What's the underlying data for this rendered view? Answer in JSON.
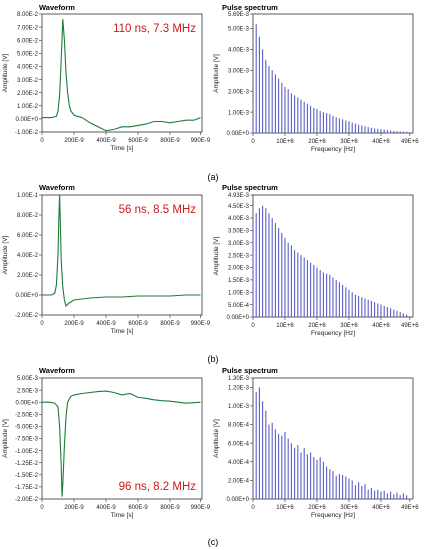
{
  "panels": [
    {
      "caption": "(a)",
      "waveform": {
        "type": "line",
        "title": "Waveform",
        "annotation": "110 ns, 7.3 MHz",
        "xlabel": "Time [s]",
        "ylabel": "Amplitude [V]",
        "xlim": [
          0,
          1e-06
        ],
        "ylim": [
          -0.01,
          0.08
        ],
        "x_ticks": [
          0,
          2e-07,
          4e-07,
          6e-07,
          8e-07,
          9.9e-07
        ],
        "x_tick_labels": [
          "0",
          "200E-9",
          "400E-9",
          "600E-9",
          "800E-9",
          "990E-9"
        ],
        "y_ticks": [
          -0.01,
          0,
          0.01,
          0.02,
          0.03,
          0.04,
          0.05,
          0.06,
          0.07,
          0.08
        ],
        "y_tick_labels": [
          "-1.00E-2",
          "0.00E+0",
          "1.00E-2",
          "2.00E-2",
          "3.00E-2",
          "4.00E-2",
          "5.00E-2",
          "6.00E-2",
          "7.00E-2",
          "8.00E-2"
        ],
        "x": [
          0,
          6e-08,
          9e-08,
          1e-07,
          1.1e-07,
          1.2e-07,
          1.3e-07,
          1.4e-07,
          1.5e-07,
          1.6e-07,
          1.7e-07,
          1.8e-07,
          2e-07,
          2.2e-07,
          2.5e-07,
          3e-07,
          3.5e-07,
          4e-07,
          4.5e-07,
          5e-07,
          5.5e-07,
          6e-07,
          6.5e-07,
          7e-07,
          7.5e-07,
          8e-07,
          8.5e-07,
          9e-07,
          9.5e-07,
          9.9e-07
        ],
        "y": [
          0.001,
          0.001,
          0.002,
          0.006,
          0.018,
          0.045,
          0.076,
          0.06,
          0.035,
          0.02,
          0.011,
          0.006,
          0.003,
          0.002,
          0.001,
          -0.003,
          -0.006,
          -0.009,
          -0.008,
          -0.006,
          -0.006,
          -0.005,
          -0.004,
          -0.002,
          -0.002,
          -0.003,
          -0.002,
          -0.001,
          -0.001,
          0.001
        ]
      },
      "spectrum": {
        "type": "bar",
        "title": "Pulse spectrum",
        "xlabel": "Frequency [Hz]",
        "ylabel": "Amplitude [V]",
        "xlim": [
          0,
          50000000.0
        ],
        "ylim": [
          0,
          0.00569
        ],
        "x_ticks": [
          0,
          10000000.0,
          20000000.0,
          30000000.0,
          40000000.0,
          49000000.0
        ],
        "x_tick_labels": [
          "0",
          "10E+6",
          "20E+6",
          "30E+6",
          "40E+6",
          "49E+6"
        ],
        "y_ticks": [
          0,
          0.001,
          0.002,
          0.003,
          0.004,
          0.005,
          0.00569
        ],
        "y_tick_labels": [
          "0.00E+0",
          "1.00E-3",
          "2.00E-3",
          "3.00E-3",
          "4.00E-3",
          "5.00E-3",
          "5.69E-3"
        ],
        "freq_step": 1000000.0,
        "values": [
          0.00055,
          0.0052,
          0.0046,
          0.004,
          0.0035,
          0.0032,
          0.003,
          0.0028,
          0.0026,
          0.0024,
          0.0022,
          0.0021,
          0.0019,
          0.0018,
          0.0017,
          0.0016,
          0.0015,
          0.0014,
          0.0013,
          0.0012,
          0.00115,
          0.00105,
          0.001,
          0.00095,
          0.0009,
          0.00082,
          0.00076,
          0.0007,
          0.00065,
          0.0006,
          0.00056,
          0.0005,
          0.00045,
          0.0004,
          0.00036,
          0.00032,
          0.00028,
          0.00025,
          0.00022,
          0.0002,
          0.00018,
          0.00016,
          0.00014,
          0.00012,
          0.0001,
          9e-05,
          8e-05,
          7e-05,
          6e-05
        ]
      }
    },
    {
      "caption": "(b)",
      "waveform": {
        "type": "line",
        "title": "Waveform",
        "annotation": "56 ns, 8.5 MHz",
        "xlabel": "Time [s]",
        "ylabel": "Amplitude [V]",
        "xlim": [
          0,
          1e-06
        ],
        "ylim": [
          -0.02,
          0.1
        ],
        "x_ticks": [
          0,
          2e-07,
          4e-07,
          6e-07,
          8e-07,
          9.9e-07
        ],
        "x_tick_labels": [
          "0",
          "200E-9",
          "400E-9",
          "600E-9",
          "800E-9",
          "990E-9"
        ],
        "y_ticks": [
          -0.02,
          0,
          0.02,
          0.04,
          0.06,
          0.08,
          0.1
        ],
        "y_tick_labels": [
          "-2.00E-2",
          "0.00E+0",
          "2.00E-2",
          "4.00E-2",
          "6.00E-2",
          "8.00E-2",
          "1.00E-1"
        ],
        "x": [
          0,
          6e-08,
          8e-08,
          9e-08,
          1e-07,
          1.05e-07,
          1.1e-07,
          1.15e-07,
          1.2e-07,
          1.3e-07,
          1.4e-07,
          1.5e-07,
          1.7e-07,
          2e-07,
          2.5e-07,
          3e-07,
          4e-07,
          5e-07,
          6e-07,
          7e-07,
          8e-07,
          9e-07,
          9.9e-07
        ],
        "y": [
          0,
          0,
          0.002,
          0.01,
          0.04,
          0.075,
          0.1,
          0.07,
          0.035,
          0.008,
          -0.005,
          -0.011,
          -0.008,
          -0.005,
          -0.004,
          -0.003,
          -0.002,
          -0.002,
          -0.001,
          -0.001,
          -0.001,
          0,
          0
        ]
      },
      "spectrum": {
        "type": "bar",
        "title": "Pulse spectrum",
        "xlabel": "Frequency [Hz]",
        "ylabel": "Amplitude [V]",
        "xlim": [
          0,
          50000000.0
        ],
        "ylim": [
          0,
          0.00493
        ],
        "x_ticks": [
          0,
          10000000.0,
          20000000.0,
          30000000.0,
          40000000.0,
          49000000.0
        ],
        "x_tick_labels": [
          "0",
          "10E+6",
          "20E+6",
          "30E+6",
          "40E+6",
          "49E+6"
        ],
        "y_ticks": [
          0,
          0.0005,
          0.001,
          0.0015,
          0.002,
          0.0025,
          0.003,
          0.0035,
          0.004,
          0.0045,
          0.00493
        ],
        "y_tick_labels": [
          "0.00E+0",
          "5.00E-4",
          "1.00E-3",
          "1.50E-3",
          "2.00E-3",
          "2.50E-3",
          "3.00E-3",
          "3.50E-3",
          "4.00E-3",
          "4.50E-3",
          "4.93E-3"
        ],
        "freq_step": 1000000.0,
        "values": [
          0.0038,
          0.0042,
          0.0044,
          0.0045,
          0.0044,
          0.0042,
          0.004,
          0.0038,
          0.0036,
          0.0034,
          0.0032,
          0.003,
          0.0029,
          0.0027,
          0.0026,
          0.0025,
          0.0024,
          0.0023,
          0.0022,
          0.0021,
          0.002,
          0.0019,
          0.0018,
          0.00175,
          0.0017,
          0.0016,
          0.0015,
          0.0014,
          0.0013,
          0.0012,
          0.0011,
          0.001,
          0.0009,
          0.00085,
          0.0008,
          0.00075,
          0.0007,
          0.00065,
          0.0006,
          0.00055,
          0.0005,
          0.00045,
          0.0004,
          0.00035,
          0.0003,
          0.00025,
          0.0002,
          0.00015,
          0.0001
        ]
      }
    },
    {
      "caption": "(c)",
      "waveform": {
        "type": "line",
        "title": "Waveform",
        "annotation": "96 ns, 8.2 MHz",
        "xlabel": "Time [s]",
        "ylabel": "Amplitude [V]",
        "xlim": [
          0,
          1e-06
        ],
        "ylim": [
          -0.02,
          0.005
        ],
        "x_ticks": [
          0,
          2e-07,
          4e-07,
          6e-07,
          8e-07,
          9.9e-07
        ],
        "x_tick_labels": [
          "0",
          "200E-9",
          "400E-9",
          "600E-9",
          "800E-9",
          "990E-9"
        ],
        "y_ticks": [
          -0.02,
          -0.0175,
          -0.015,
          -0.0125,
          -0.01,
          -0.0075,
          -0.005,
          -0.0025,
          0,
          0.0025,
          0.005
        ],
        "y_tick_labels": [
          "-2.00E-2",
          "-1.75E-2",
          "-1.50E-2",
          "-1.25E-2",
          "-1.00E-2",
          "-7.50E-3",
          "-5.00E-3",
          "-2.50E-3",
          "0.00E+0",
          "2.50E-3",
          "5.00E-3"
        ],
        "x": [
          0,
          5e-08,
          8e-08,
          1e-07,
          1.1e-07,
          1.2e-07,
          1.25e-07,
          1.3e-07,
          1.4e-07,
          1.5e-07,
          1.6e-07,
          1.8e-07,
          2e-07,
          2.5e-07,
          3e-07,
          3.5e-07,
          4e-07,
          4.5e-07,
          5e-07,
          5.5e-07,
          6e-07,
          6.5e-07,
          7e-07,
          7.5e-07,
          8e-07,
          8.5e-07,
          9e-07,
          9.5e-07,
          9.9e-07
        ],
        "y": [
          0,
          0,
          -0.0002,
          -0.001,
          -0.005,
          -0.013,
          -0.0195,
          -0.017,
          -0.009,
          -0.003,
          0,
          0.0012,
          0.0015,
          0.0018,
          0.002,
          0.0022,
          0.0023,
          0.002,
          0.0015,
          0.0018,
          0.001,
          0.0008,
          0.0005,
          0.0003,
          0.0002,
          0,
          -0.0002,
          -0.0001,
          0
        ]
      },
      "spectrum": {
        "type": "bar",
        "title": "Pulse spectrum",
        "xlabel": "Frequency [Hz]",
        "ylabel": "Amplitude [V]",
        "xlim": [
          0,
          50000000.0
        ],
        "ylim": [
          0,
          0.0013
        ],
        "x_ticks": [
          0,
          10000000.0,
          20000000.0,
          30000000.0,
          40000000.0,
          49000000.0
        ],
        "x_tick_labels": [
          "0",
          "10E+6",
          "20E+6",
          "30E+6",
          "40E+6",
          "49E+6"
        ],
        "y_ticks": [
          0,
          0.0002,
          0.0004,
          0.0006,
          0.0008,
          0.001,
          0.0012,
          0.0013
        ],
        "y_tick_labels": [
          "0.00E+0",
          "2.00E-4",
          "4.00E-4",
          "6.00E-4",
          "8.00E-4",
          "1.00E-3",
          "1.20E-3",
          "1.30E-3"
        ],
        "freq_step": 1000000.0,
        "values": [
          0.00012,
          0.00115,
          0.0012,
          0.00105,
          0.00095,
          0.0008,
          0.00082,
          0.00075,
          0.0007,
          0.00068,
          0.00072,
          0.00065,
          0.0006,
          0.00055,
          0.00058,
          0.0005,
          0.00055,
          0.00048,
          0.0005,
          0.00045,
          0.00042,
          0.00045,
          0.0004,
          0.00035,
          0.00032,
          0.0003,
          0.00025,
          0.00027,
          0.00026,
          0.00024,
          0.00022,
          0.0002,
          0.00015,
          0.00018,
          0.00014,
          0.00016,
          0.0001,
          0.00012,
          9e-05,
          0.0001,
          8e-05,
          9e-05,
          6e-05,
          8e-05,
          5e-05,
          7e-05,
          4e-05,
          6e-05,
          4e-05
        ]
      }
    }
  ],
  "colors": {
    "waveform_line": "#1f7a3a",
    "spectrum_bar": "#5b5fc7",
    "annotation_text": "#d01919",
    "axis": "#333333",
    "grid": "#cccccc"
  }
}
